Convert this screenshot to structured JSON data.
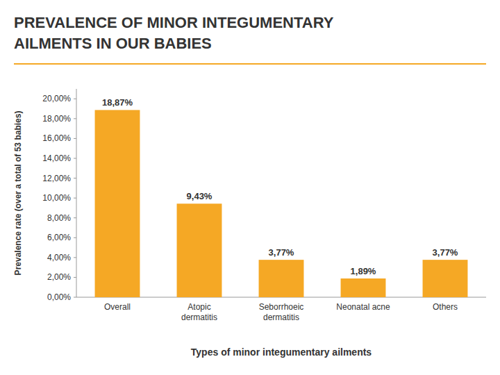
{
  "chart_data": {
    "type": "bar",
    "title": "PREVALENCE OF MINOR INTEGUMENTARY\nAILMENTS IN OUR BABIES",
    "xlabel": "Types of minor integumentary ailments",
    "ylabel": "Prevalence rate (over a total of 53 babies)",
    "categories": [
      "Overall",
      "Atopic\ndermatitis",
      "Seborrhoeic\ndermatitis",
      "Neonatal acne",
      "Others"
    ],
    "values": [
      18.87,
      9.43,
      3.77,
      1.89,
      3.77
    ],
    "value_labels": [
      "18,87%",
      "9,43%",
      "3,77%",
      "1,89%",
      "3,77%"
    ],
    "data_labels": true,
    "color": "#F5A825",
    "ylim": [
      0,
      21
    ],
    "yticks": [
      {
        "value": 0,
        "label": "0,00%"
      },
      {
        "value": 2,
        "label": "2,00%"
      },
      {
        "value": 4,
        "label": "4,00%"
      },
      {
        "value": 6,
        "label": "6,00%"
      },
      {
        "value": 8,
        "label": "8,00%"
      },
      {
        "value": 10,
        "label": "10,00%"
      },
      {
        "value": 12,
        "label": "12,00%"
      },
      {
        "value": 14,
        "label": "14,00%"
      },
      {
        "value": 16,
        "label": "16,00%"
      },
      {
        "value": 18,
        "label": "18,00%"
      },
      {
        "value": 20,
        "label": "20,00%"
      }
    ],
    "grid": false
  }
}
